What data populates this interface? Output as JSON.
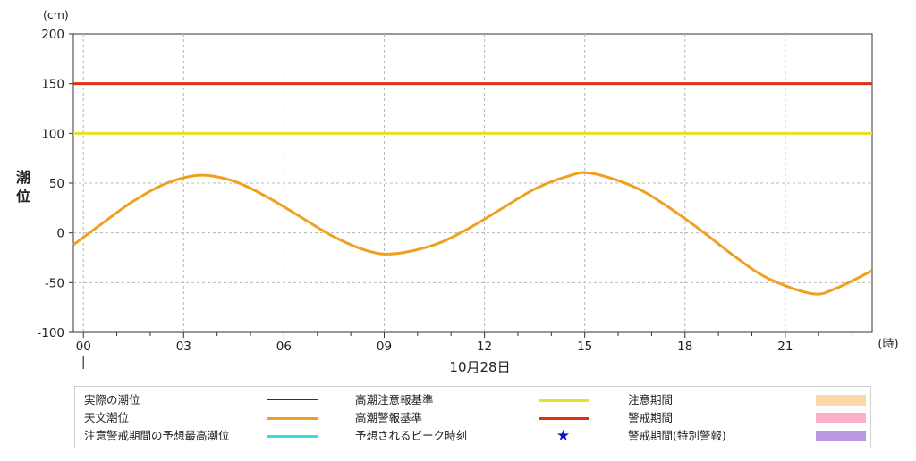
{
  "chart_data": {
    "type": "line",
    "y_unit": "(cm)",
    "ylabel": "潮\n位",
    "ylim": [
      -100,
      200
    ],
    "yticks": [
      -100,
      -50,
      0,
      50,
      100,
      150,
      200
    ],
    "xlim": [
      -0.3,
      23.6
    ],
    "xticks": [
      0,
      3,
      6,
      9,
      12,
      15,
      18,
      21
    ],
    "xtick_labels": [
      "00",
      "03",
      "06",
      "09",
      "12",
      "15",
      "18",
      "21"
    ],
    "x_unit": "(時)",
    "date_label": "10月28日",
    "grid": true,
    "series": [
      {
        "name": "天文潮位",
        "color": "#f0a020",
        "x": [
          -0.3,
          0.5,
          1.5,
          2.5,
          3.5,
          4.5,
          5.5,
          6.5,
          7.5,
          8.5,
          9.3,
          10.5,
          11.5,
          12.5,
          13.5,
          14.5,
          15.2,
          16.5,
          17.5,
          18.5,
          19.5,
          20.5,
          21.8,
          22.5,
          23.6
        ],
        "values": [
          -12,
          8,
          32,
          50,
          58,
          52,
          36,
          16,
          -4,
          -18,
          -21,
          -12,
          4,
          24,
          44,
          57,
          60,
          46,
          26,
          2,
          -24,
          -46,
          -61,
          -56,
          -38
        ]
      },
      {
        "name": "高潮注意報基準",
        "color": "#e8e020",
        "constant": 100
      },
      {
        "name": "高潮警報基準",
        "color": "#e03010",
        "constant": 150
      }
    ]
  },
  "legend": {
    "items": [
      {
        "label": "実際の潮位",
        "kind": "line",
        "color": "#3020a0"
      },
      {
        "label": "天文潮位",
        "kind": "line",
        "color": "#f0a020"
      },
      {
        "label": "注意警戒期間の予想最高潮位",
        "kind": "line",
        "color": "#30e0e0"
      },
      {
        "label": "高潮注意報基準",
        "kind": "line",
        "color": "#e8e020"
      },
      {
        "label": "高潮警報基準",
        "kind": "line",
        "color": "#e03010"
      },
      {
        "label": "予想されるピーク時刻",
        "kind": "star",
        "color": "#1010d0"
      },
      {
        "label": "注意期間",
        "kind": "box",
        "color": "#fcd8a8"
      },
      {
        "label": "警戒期間",
        "kind": "box",
        "color": "#fcb0c8"
      },
      {
        "label": "警戒期間(特別警報)",
        "kind": "box",
        "color": "#b898e0"
      }
    ]
  }
}
